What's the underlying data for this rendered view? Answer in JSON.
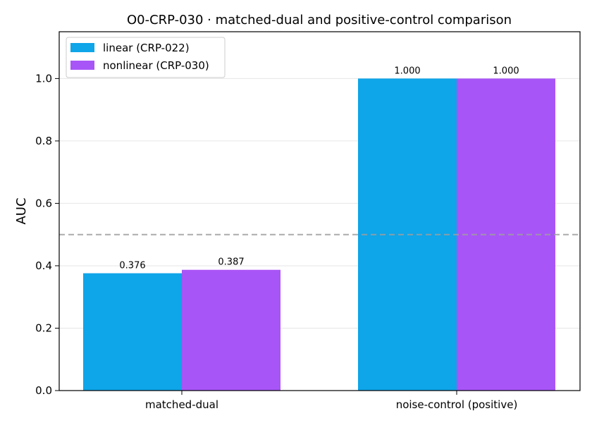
{
  "chart_data": {
    "type": "bar",
    "title": "O0-CRP-030 · matched-dual and positive-control comparison",
    "xlabel": "",
    "ylabel": "AUC",
    "ylim": [
      0,
      1.15
    ],
    "yticks": [
      "0.0",
      "0.2",
      "0.4",
      "0.6",
      "0.8",
      "1.0"
    ],
    "ytick_values": [
      0,
      0.2,
      0.4,
      0.6,
      0.8,
      1.0
    ],
    "categories": [
      "matched-dual",
      "noise-control (positive)"
    ],
    "series": [
      {
        "name": "linear (CRP-022)",
        "color": "#0ea5e9",
        "values": [
          0.376,
          1.0
        ],
        "labels": [
          "0.376",
          "1.000"
        ]
      },
      {
        "name": "nonlinear (CRP-030)",
        "color": "#a855f7",
        "values": [
          0.387,
          1.0
        ],
        "labels": [
          "0.387",
          "1.000"
        ]
      }
    ],
    "reference_line": {
      "value": 0.5,
      "style": "dashed"
    },
    "grid": "horizontal",
    "legend_position": "top-left"
  }
}
